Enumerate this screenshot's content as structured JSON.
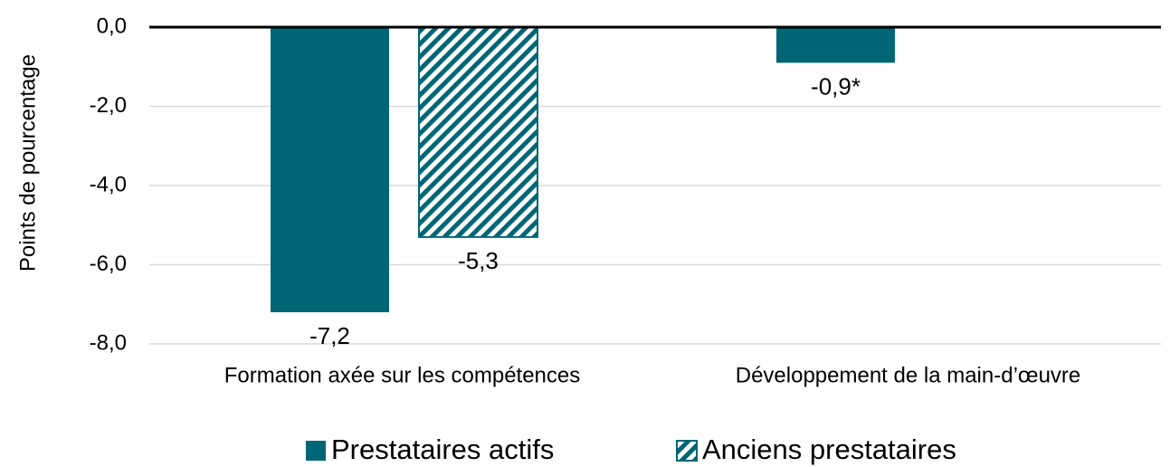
{
  "chart_data": {
    "type": "bar",
    "y_label": "Points de pourcentage",
    "categories": [
      "Formation axée sur les compétences",
      "Développement  de la main-d’œuvre"
    ],
    "series": [
      {
        "name": "Prestataires actifs",
        "color": "#006675",
        "hatch": false,
        "values": [
          -7.2,
          -0.9
        ],
        "value_labels": [
          "-7,2",
          "-0,9*"
        ]
      },
      {
        "name": "Anciens prestataires",
        "color": "#006675",
        "hatch": true,
        "values": [
          -5.3,
          null
        ],
        "value_labels": [
          "-5,3",
          null
        ]
      }
    ],
    "ylim": [
      -8,
      0
    ],
    "yticks": [
      {
        "value": 0,
        "label": "0,0"
      },
      {
        "value": -2,
        "label": "-2,0"
      },
      {
        "value": -4,
        "label": "-4,0"
      },
      {
        "value": -6,
        "label": "-6,0"
      },
      {
        "value": -8,
        "label": "-8,0"
      }
    ],
    "grid": true,
    "legend": "bottom"
  }
}
